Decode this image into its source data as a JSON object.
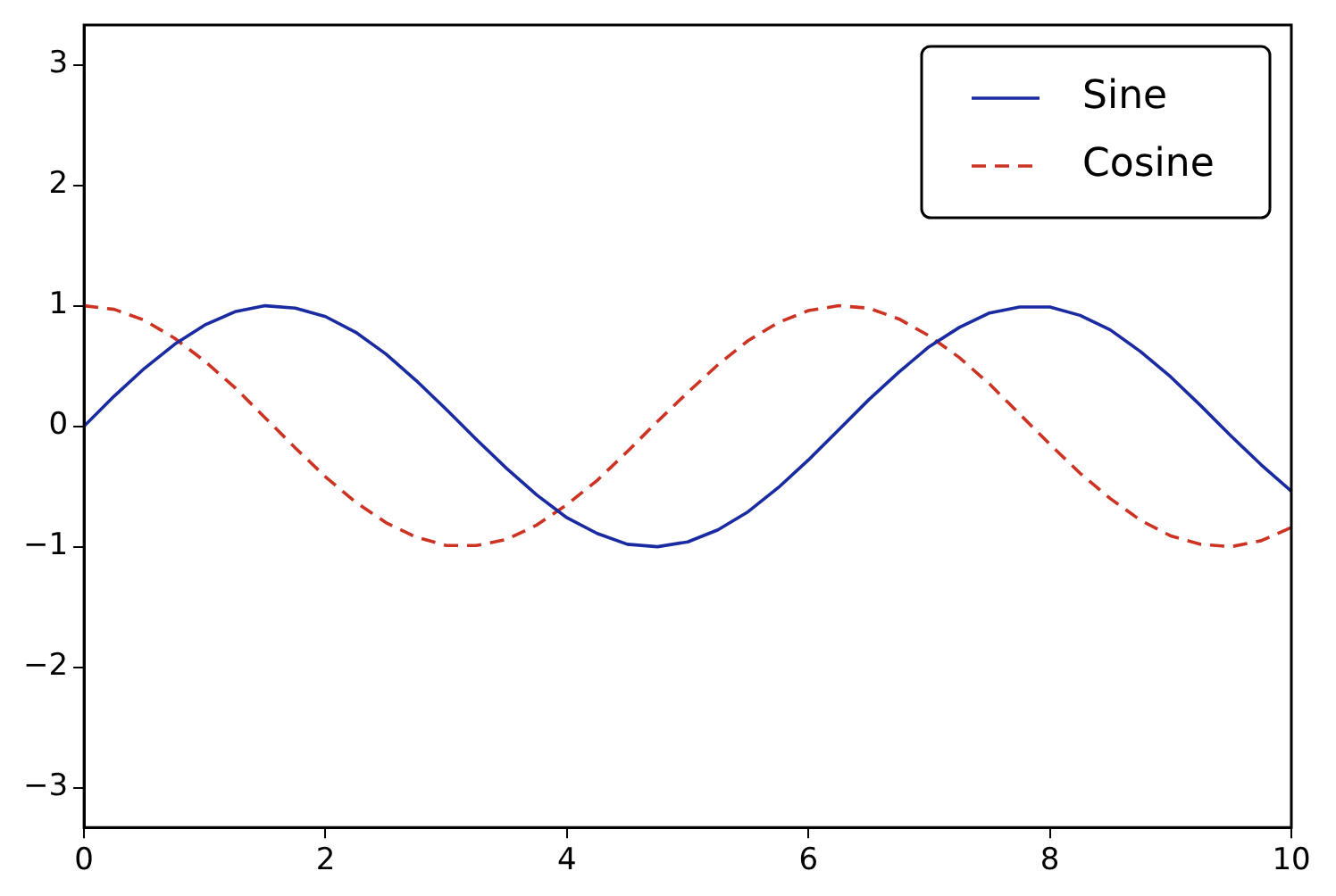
{
  "chart_data": {
    "type": "line",
    "x": [
      0,
      0.25,
      0.5,
      0.75,
      1,
      1.25,
      1.5,
      1.75,
      2,
      2.25,
      2.5,
      2.75,
      3,
      3.25,
      3.5,
      3.75,
      4,
      4.25,
      4.5,
      4.75,
      5,
      5.25,
      5.5,
      5.75,
      6,
      6.25,
      6.5,
      6.75,
      7,
      7.25,
      7.5,
      7.75,
      8,
      8.25,
      8.5,
      8.75,
      9,
      9.25,
      9.5,
      9.75,
      10
    ],
    "series": [
      {
        "name": "Sine",
        "color": "#1a2aa0",
        "line_style": "solid",
        "values": [
          0,
          0.25,
          0.48,
          0.68,
          0.84,
          0.95,
          1.0,
          0.98,
          0.91,
          0.78,
          0.6,
          0.38,
          0.14,
          -0.11,
          -0.35,
          -0.57,
          -0.76,
          -0.89,
          -0.98,
          -1.0,
          -0.96,
          -0.86,
          -0.71,
          -0.51,
          -0.28,
          -0.03,
          0.22,
          0.45,
          0.66,
          0.82,
          0.94,
          0.99,
          0.99,
          0.92,
          0.8,
          0.62,
          0.41,
          0.17,
          -0.08,
          -0.32,
          -0.54
        ]
      },
      {
        "name": "Cosine",
        "color": "#cc3322",
        "line_style": "dashed",
        "values": [
          1,
          0.97,
          0.88,
          0.73,
          0.54,
          0.32,
          0.07,
          -0.18,
          -0.42,
          -0.63,
          -0.8,
          -0.92,
          -0.99,
          -0.99,
          -0.94,
          -0.82,
          -0.65,
          -0.45,
          -0.21,
          0.04,
          0.28,
          0.51,
          0.71,
          0.86,
          0.96,
          1.0,
          0.98,
          0.89,
          0.75,
          0.57,
          0.35,
          0.1,
          -0.15,
          -0.39,
          -0.6,
          -0.78,
          -0.91,
          -0.98,
          -1.0,
          -0.95,
          -0.84
        ]
      }
    ],
    "xlim": [
      0,
      10
    ],
    "xticks": [
      0,
      2,
      4,
      6,
      8,
      10
    ],
    "ylim": [
      -3.33,
      3.33
    ],
    "yticks": [
      {
        "value": -3,
        "label": "−3"
      },
      {
        "value": -2,
        "label": "−2"
      },
      {
        "value": -1,
        "label": "−1"
      },
      0,
      1,
      2,
      3
    ],
    "grid": false,
    "legend": "top right",
    "marker": "none"
  }
}
